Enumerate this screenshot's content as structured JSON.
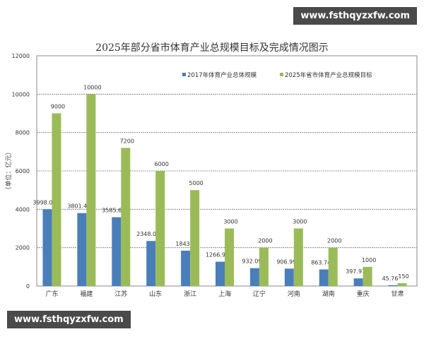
{
  "watermark_top": "www.fsthqyzxfw.com",
  "watermark_bottom": "www.fsthqyzxfw.com",
  "chart_data": {
    "type": "bar",
    "title": "2025年部分省市体育产业总规模目标及完成情况图示",
    "ylabel": "（单位：亿元）",
    "xlabel": "",
    "ylim": [
      0,
      12000
    ],
    "yticks": [
      0,
      2000,
      4000,
      6000,
      8000,
      10000,
      12000
    ],
    "grid": true,
    "legend_position": "top-right",
    "categories": [
      "广东",
      "福建",
      "江苏",
      "山东",
      "浙江",
      "上海",
      "辽宁",
      "河南",
      "湖南",
      "重庆",
      "甘肃"
    ],
    "series": [
      {
        "name": "2017年体育产业总体规模",
        "color": "#4a7ebb",
        "values": [
          3998.03,
          3801.41,
          3585.64,
          2348.01,
          1843,
          1266.93,
          932.09,
          906.99,
          863.74,
          397.91,
          45.76
        ]
      },
      {
        "name": "2025年省市体育产业总规模目标",
        "color": "#9bbb59",
        "values": [
          9000,
          10000,
          7200,
          6000,
          5000,
          3000,
          2000,
          3000,
          2000,
          1000,
          150
        ]
      }
    ]
  }
}
